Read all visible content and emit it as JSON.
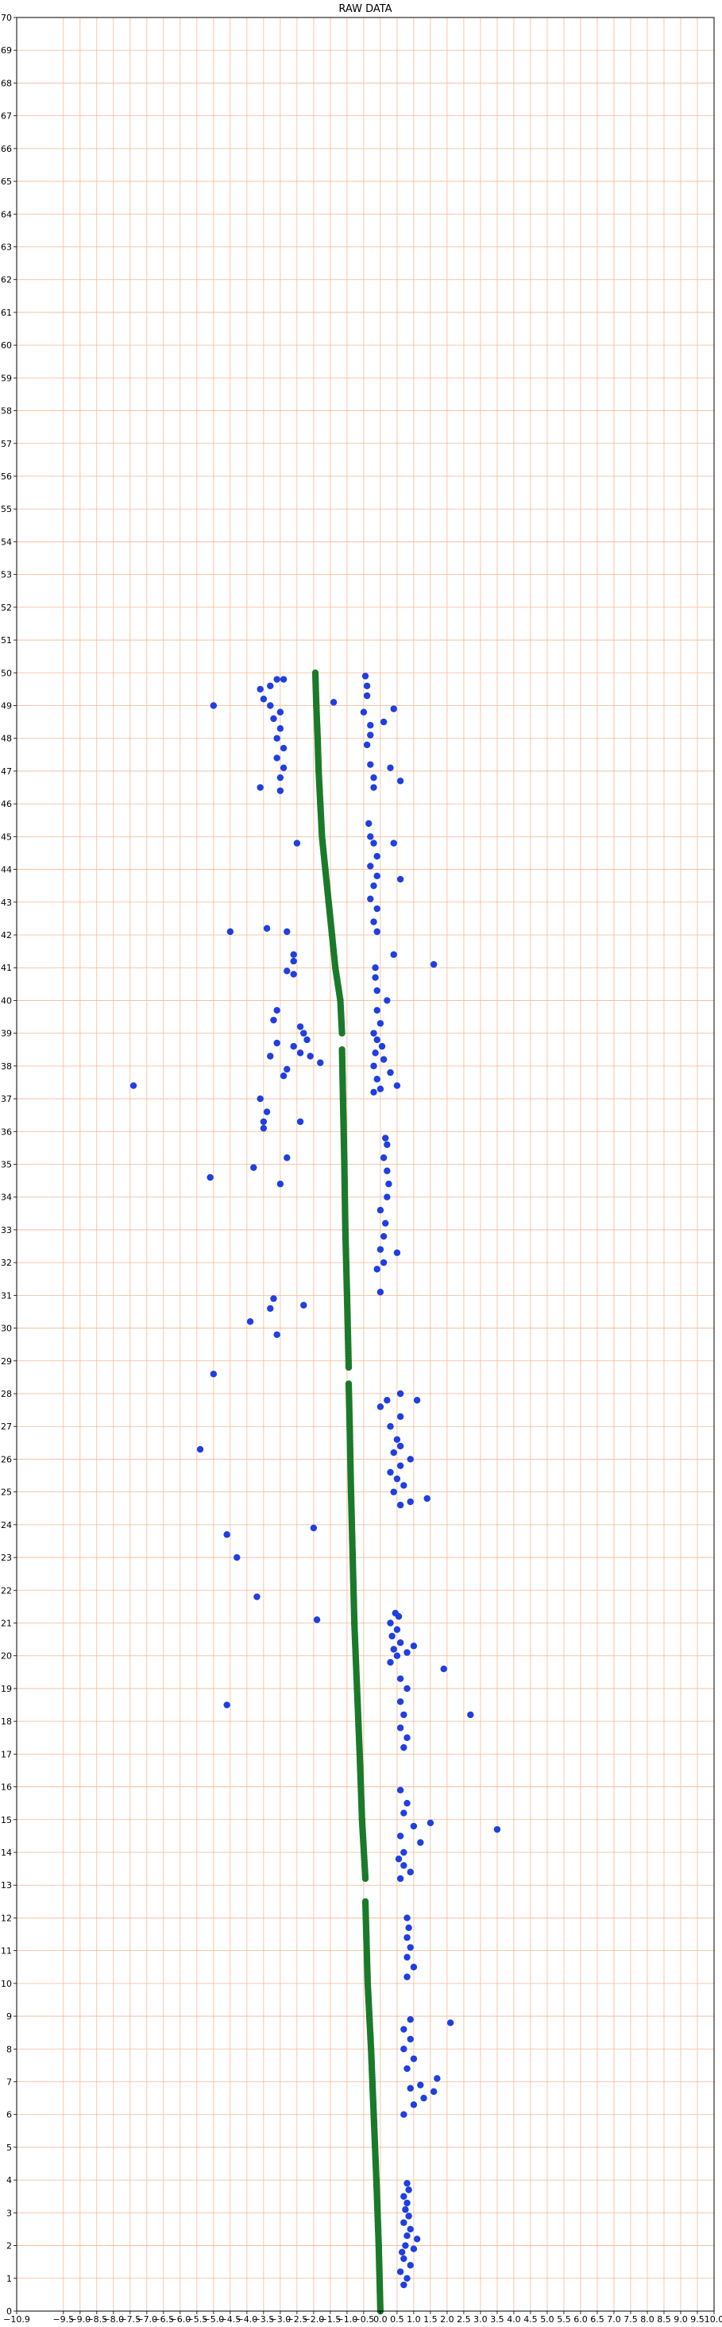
{
  "chart_data": {
    "type": "scatter",
    "title": "RAW DATA",
    "xlabel": "",
    "ylabel": "",
    "xlim": [
      -10.9,
      10.0
    ],
    "ylim": [
      0,
      70
    ],
    "grid": true,
    "grid_color": "#f5b896",
    "x_ticks": [
      "-10.9",
      "-9.5",
      "-9.0",
      "-8.5",
      "-8.0",
      "-7.5",
      "-7.0",
      "-6.5",
      "-6.0",
      "-5.5",
      "-5.0",
      "-4.5",
      "-4.0",
      "-3.5",
      "-3.0",
      "-2.5",
      "-2.0",
      "-1.5",
      "-1.0",
      "-0.5",
      "0.0",
      "0.5",
      "1.0",
      "1.5",
      "2.0",
      "2.5",
      "3.0",
      "3.5",
      "4.0",
      "4.5",
      "5.0",
      "5.5",
      "6.0",
      "6.5",
      "7.0",
      "7.5",
      "8.0",
      "8.5",
      "9.0",
      "9.5",
      "10.0"
    ],
    "y_ticks": [
      "0",
      "1",
      "2",
      "3",
      "4",
      "5",
      "6",
      "7",
      "8",
      "9",
      "10",
      "11",
      "12",
      "13",
      "14",
      "15",
      "16",
      "17",
      "18",
      "19",
      "20",
      "21",
      "22",
      "23",
      "24",
      "25",
      "26",
      "27",
      "28",
      "29",
      "30",
      "31",
      "32",
      "33",
      "34",
      "35",
      "36",
      "37",
      "38",
      "39",
      "40",
      "41",
      "42",
      "43",
      "44",
      "45",
      "46",
      "47",
      "48",
      "49",
      "50",
      "51",
      "52",
      "53",
      "54",
      "55",
      "56",
      "57",
      "58",
      "59",
      "60",
      "61",
      "62",
      "63",
      "64",
      "65",
      "66",
      "67",
      "68",
      "69",
      "70"
    ],
    "series": [
      {
        "color": "#1a7a2a",
        "path_segments": [
          [
            [
              0.0,
              0.0
            ],
            [
              -0.05,
              2.0
            ],
            [
              -0.12,
              4.0
            ],
            [
              -0.2,
              6.0
            ],
            [
              -0.28,
              8.0
            ],
            [
              -0.38,
              10.0
            ],
            [
              -0.45,
              12.5
            ]
          ],
          [
            [
              -0.45,
              13.2
            ],
            [
              -0.55,
              15.0
            ],
            [
              -0.62,
              17.0
            ],
            [
              -0.7,
              19.0
            ],
            [
              -0.78,
              21.0
            ],
            [
              -0.83,
              23.0
            ],
            [
              -0.88,
              25.0
            ],
            [
              -0.92,
              27.0
            ],
            [
              -0.95,
              28.3
            ]
          ],
          [
            [
              -0.95,
              28.8
            ],
            [
              -1.0,
              31.0
            ],
            [
              -1.05,
              33.0
            ],
            [
              -1.08,
              35.0
            ],
            [
              -1.12,
              37.0
            ],
            [
              -1.15,
              38.5
            ]
          ],
          [
            [
              -1.15,
              39.0
            ],
            [
              -1.2,
              40.0
            ],
            [
              -1.35,
              41.0
            ],
            [
              -1.45,
              42.0
            ],
            [
              -1.55,
              43.0
            ],
            [
              -1.65,
              44.0
            ],
            [
              -1.75,
              45.0
            ],
            [
              -1.8,
              46.0
            ],
            [
              -1.85,
              47.0
            ],
            [
              -1.88,
              48.0
            ],
            [
              -1.92,
              49.0
            ],
            [
              -1.95,
              50.0
            ]
          ]
        ]
      },
      {
        "color": "#1f3fe0",
        "points": [
          [
            0.7,
            0.8
          ],
          [
            0.8,
            1.0
          ],
          [
            0.6,
            1.2
          ],
          [
            0.9,
            1.4
          ],
          [
            0.7,
            1.6
          ],
          [
            0.65,
            1.8
          ],
          [
            1.0,
            1.9
          ],
          [
            0.75,
            2.0
          ],
          [
            1.1,
            2.2
          ],
          [
            0.8,
            2.3
          ],
          [
            0.9,
            2.5
          ],
          [
            0.7,
            2.7
          ],
          [
            0.85,
            2.9
          ],
          [
            0.75,
            3.1
          ],
          [
            0.8,
            3.3
          ],
          [
            0.7,
            3.5
          ],
          [
            0.85,
            3.7
          ],
          [
            0.8,
            3.9
          ],
          [
            0.7,
            6.0
          ],
          [
            1.0,
            6.3
          ],
          [
            1.3,
            6.5
          ],
          [
            1.6,
            6.7
          ],
          [
            0.9,
            6.8
          ],
          [
            1.2,
            6.9
          ],
          [
            1.7,
            7.1
          ],
          [
            0.8,
            7.4
          ],
          [
            1.0,
            7.7
          ],
          [
            0.7,
            8.0
          ],
          [
            0.9,
            8.3
          ],
          [
            0.7,
            8.6
          ],
          [
            0.9,
            8.9
          ],
          [
            2.1,
            8.8
          ],
          [
            0.8,
            10.2
          ],
          [
            1.0,
            10.5
          ],
          [
            0.8,
            10.8
          ],
          [
            0.9,
            11.1
          ],
          [
            0.8,
            11.4
          ],
          [
            0.85,
            11.7
          ],
          [
            0.8,
            12.0
          ],
          [
            0.6,
            13.2
          ],
          [
            0.9,
            13.4
          ],
          [
            0.7,
            13.6
          ],
          [
            0.55,
            13.8
          ],
          [
            0.7,
            14.0
          ],
          [
            1.2,
            14.3
          ],
          [
            0.6,
            14.5
          ],
          [
            1.0,
            14.8
          ],
          [
            0.7,
            15.2
          ],
          [
            1.5,
            14.9
          ],
          [
            3.5,
            14.7
          ],
          [
            0.8,
            15.5
          ],
          [
            0.6,
            15.9
          ],
          [
            0.7,
            17.2
          ],
          [
            0.8,
            17.5
          ],
          [
            0.6,
            17.8
          ],
          [
            0.7,
            18.2
          ],
          [
            2.7,
            18.2
          ],
          [
            0.6,
            18.6
          ],
          [
            0.8,
            19.0
          ],
          [
            0.6,
            19.3
          ],
          [
            1.9,
            19.6
          ],
          [
            0.3,
            19.8
          ],
          [
            0.5,
            20.0
          ],
          [
            0.4,
            20.2
          ],
          [
            0.6,
            20.4
          ],
          [
            0.35,
            20.6
          ],
          [
            0.5,
            20.8
          ],
          [
            0.3,
            21.0
          ],
          [
            0.55,
            21.2
          ],
          [
            0.45,
            21.3
          ],
          [
            0.8,
            20.1
          ],
          [
            1.0,
            20.3
          ],
          [
            0.6,
            24.6
          ],
          [
            0.9,
            24.7
          ],
          [
            1.4,
            24.8
          ],
          [
            0.4,
            25.0
          ],
          [
            0.7,
            25.2
          ],
          [
            0.5,
            25.4
          ],
          [
            0.3,
            25.6
          ],
          [
            0.6,
            25.8
          ],
          [
            0.9,
            26.0
          ],
          [
            0.4,
            26.2
          ],
          [
            0.6,
            26.4
          ],
          [
            0.5,
            26.6
          ],
          [
            0.3,
            27.0
          ],
          [
            0.6,
            27.3
          ],
          [
            1.1,
            27.8
          ],
          [
            0.0,
            27.6
          ],
          [
            0.2,
            27.8
          ],
          [
            0.6,
            28.0
          ],
          [
            0.0,
            31.1
          ],
          [
            0.5,
            32.3
          ],
          [
            -0.1,
            31.8
          ],
          [
            0.1,
            32.0
          ],
          [
            0.0,
            32.4
          ],
          [
            0.1,
            32.8
          ],
          [
            0.15,
            33.2
          ],
          [
            0.0,
            33.6
          ],
          [
            0.2,
            34.0
          ],
          [
            0.25,
            34.4
          ],
          [
            0.2,
            34.8
          ],
          [
            0.1,
            35.2
          ],
          [
            0.2,
            35.6
          ],
          [
            0.15,
            35.8
          ],
          [
            -0.2,
            37.2
          ],
          [
            0.0,
            37.3
          ],
          [
            0.5,
            37.4
          ],
          [
            -0.1,
            37.6
          ],
          [
            0.3,
            37.8
          ],
          [
            -0.2,
            38.0
          ],
          [
            0.1,
            38.2
          ],
          [
            -0.15,
            38.4
          ],
          [
            0.05,
            38.6
          ],
          [
            -0.1,
            38.8
          ],
          [
            -0.2,
            39.0
          ],
          [
            0.0,
            39.3
          ],
          [
            -0.1,
            39.7
          ],
          [
            0.2,
            40.0
          ],
          [
            -0.1,
            40.3
          ],
          [
            -0.15,
            40.7
          ],
          [
            -0.15,
            41.0
          ],
          [
            0.4,
            41.4
          ],
          [
            1.6,
            41.1
          ],
          [
            -0.1,
            42.1
          ],
          [
            -0.2,
            42.4
          ],
          [
            -0.1,
            42.8
          ],
          [
            -0.3,
            43.1
          ],
          [
            -0.2,
            43.5
          ],
          [
            -0.1,
            43.8
          ],
          [
            -0.3,
            44.1
          ],
          [
            -0.1,
            44.4
          ],
          [
            -0.2,
            44.8
          ],
          [
            -0.3,
            45.0
          ],
          [
            -0.35,
            45.4
          ],
          [
            0.6,
            43.7
          ],
          [
            0.4,
            44.8
          ],
          [
            -0.2,
            46.5
          ],
          [
            -0.2,
            46.8
          ],
          [
            -0.3,
            47.2
          ],
          [
            0.3,
            47.1
          ],
          [
            0.6,
            46.7
          ],
          [
            -0.4,
            47.8
          ],
          [
            -0.3,
            48.1
          ],
          [
            -0.3,
            48.4
          ],
          [
            0.1,
            48.5
          ],
          [
            -0.5,
            48.8
          ],
          [
            0.4,
            48.9
          ],
          [
            -0.4,
            49.3
          ],
          [
            -0.4,
            49.6
          ],
          [
            -0.45,
            49.9
          ],
          [
            -1.4,
            49.1
          ],
          [
            -3.1,
            49.8
          ],
          [
            -2.9,
            49.8
          ],
          [
            -3.3,
            49.6
          ],
          [
            -3.6,
            49.5
          ],
          [
            -3.5,
            49.2
          ],
          [
            -3.3,
            49.0
          ],
          [
            -5.0,
            49.0
          ],
          [
            -3.0,
            48.8
          ],
          [
            -3.2,
            48.6
          ],
          [
            -3.0,
            48.3
          ],
          [
            -3.1,
            48.0
          ],
          [
            -2.9,
            47.7
          ],
          [
            -3.1,
            47.4
          ],
          [
            -2.9,
            47.1
          ],
          [
            -3.0,
            46.8
          ],
          [
            -3.6,
            46.5
          ],
          [
            -3.0,
            46.4
          ],
          [
            -2.5,
            44.8
          ],
          [
            -4.5,
            42.1
          ],
          [
            -3.4,
            42.2
          ],
          [
            -2.8,
            42.1
          ],
          [
            -2.6,
            41.4
          ],
          [
            -2.6,
            41.2
          ],
          [
            -2.8,
            40.9
          ],
          [
            -2.6,
            40.8
          ],
          [
            -3.1,
            39.7
          ],
          [
            -3.2,
            39.4
          ],
          [
            -2.4,
            39.2
          ],
          [
            -2.3,
            39.0
          ],
          [
            -2.2,
            38.8
          ],
          [
            -2.6,
            38.6
          ],
          [
            -3.1,
            38.7
          ],
          [
            -2.4,
            38.4
          ],
          [
            -2.1,
            38.3
          ],
          [
            -3.3,
            38.3
          ],
          [
            -1.8,
            38.1
          ],
          [
            -2.8,
            37.9
          ],
          [
            -2.9,
            37.7
          ],
          [
            -7.4,
            37.4
          ],
          [
            -3.6,
            37.0
          ],
          [
            -3.4,
            36.6
          ],
          [
            -3.5,
            36.3
          ],
          [
            -2.4,
            36.3
          ],
          [
            -3.5,
            36.1
          ],
          [
            -2.8,
            35.2
          ],
          [
            -3.8,
            34.9
          ],
          [
            -5.1,
            34.6
          ],
          [
            -3.0,
            34.4
          ],
          [
            -3.2,
            30.9
          ],
          [
            -3.3,
            30.6
          ],
          [
            -2.3,
            30.7
          ],
          [
            -3.9,
            30.2
          ],
          [
            -3.1,
            29.8
          ],
          [
            -5.0,
            28.6
          ],
          [
            -5.4,
            26.3
          ],
          [
            -2.0,
            23.9
          ],
          [
            -4.6,
            23.7
          ],
          [
            -4.3,
            23.0
          ],
          [
            -3.7,
            21.8
          ],
          [
            -1.9,
            21.1
          ],
          [
            -4.6,
            18.5
          ]
        ]
      }
    ]
  }
}
